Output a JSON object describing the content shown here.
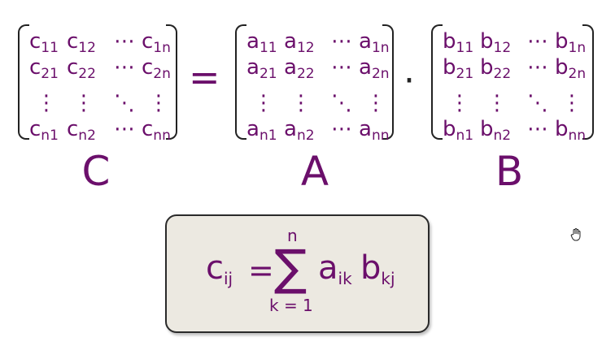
{
  "matrices": {
    "C": {
      "label": "C",
      "rows": [
        [
          {
            "b": "c",
            "s": "11"
          },
          {
            "b": "c",
            "s": "12"
          },
          {
            "b": "⋯",
            "s": ""
          },
          {
            "b": "c",
            "s": "1n"
          }
        ],
        [
          {
            "b": "c",
            "s": "21"
          },
          {
            "b": "c",
            "s": "22"
          },
          {
            "b": "⋯",
            "s": ""
          },
          {
            "b": "c",
            "s": "2n"
          }
        ],
        [
          {
            "b": "⋮",
            "s": ""
          },
          {
            "b": "⋮",
            "s": ""
          },
          {
            "b": "⋱",
            "s": ""
          },
          {
            "b": "⋮",
            "s": ""
          }
        ],
        [
          {
            "b": "c",
            "s": "n1"
          },
          {
            "b": "c",
            "s": "n2"
          },
          {
            "b": "⋯",
            "s": ""
          },
          {
            "b": "c",
            "s": "nn"
          }
        ]
      ]
    },
    "A": {
      "label": "A",
      "rows": [
        [
          {
            "b": "a",
            "s": "11"
          },
          {
            "b": "a",
            "s": "12"
          },
          {
            "b": "⋯",
            "s": ""
          },
          {
            "b": "a",
            "s": "1n"
          }
        ],
        [
          {
            "b": "a",
            "s": "21"
          },
          {
            "b": "a",
            "s": "22"
          },
          {
            "b": "⋯",
            "s": ""
          },
          {
            "b": "a",
            "s": "2n"
          }
        ],
        [
          {
            "b": "⋮",
            "s": ""
          },
          {
            "b": "⋮",
            "s": ""
          },
          {
            "b": "⋱",
            "s": ""
          },
          {
            "b": "⋮",
            "s": ""
          }
        ],
        [
          {
            "b": "a",
            "s": "n1"
          },
          {
            "b": "a",
            "s": "n2"
          },
          {
            "b": "⋯",
            "s": ""
          },
          {
            "b": "a",
            "s": "nn"
          }
        ]
      ]
    },
    "B": {
      "label": "B",
      "rows": [
        [
          {
            "b": "b",
            "s": "11"
          },
          {
            "b": "b",
            "s": "12"
          },
          {
            "b": "⋯",
            "s": ""
          },
          {
            "b": "b",
            "s": "1n"
          }
        ],
        [
          {
            "b": "b",
            "s": "21"
          },
          {
            "b": "b",
            "s": "22"
          },
          {
            "b": "⋯",
            "s": ""
          },
          {
            "b": "b",
            "s": "2n"
          }
        ],
        [
          {
            "b": "⋮",
            "s": ""
          },
          {
            "b": "⋮",
            "s": ""
          },
          {
            "b": "⋱",
            "s": ""
          },
          {
            "b": "⋮",
            "s": ""
          }
        ],
        [
          {
            "b": "b",
            "s": "n1"
          },
          {
            "b": "b",
            "s": "n2"
          },
          {
            "b": "⋯",
            "s": ""
          },
          {
            "b": "b",
            "s": "nn"
          }
        ]
      ]
    }
  },
  "operators": {
    "equals": "=",
    "dot": "·"
  },
  "formula": {
    "lhs_base": "c",
    "lhs_sub": "ij",
    "equals": "=",
    "sigma": "∑",
    "upper": "n",
    "lower": "k = 1",
    "term1_base": "a",
    "term1_sub": "ik",
    "term2_base": "b",
    "term2_sub": "kj"
  },
  "colors": {
    "text": "#6b0f6b",
    "box_bg": "#ece9e1",
    "bracket": "#222222"
  },
  "icons": {
    "cursor": "hand-pointer-icon"
  }
}
